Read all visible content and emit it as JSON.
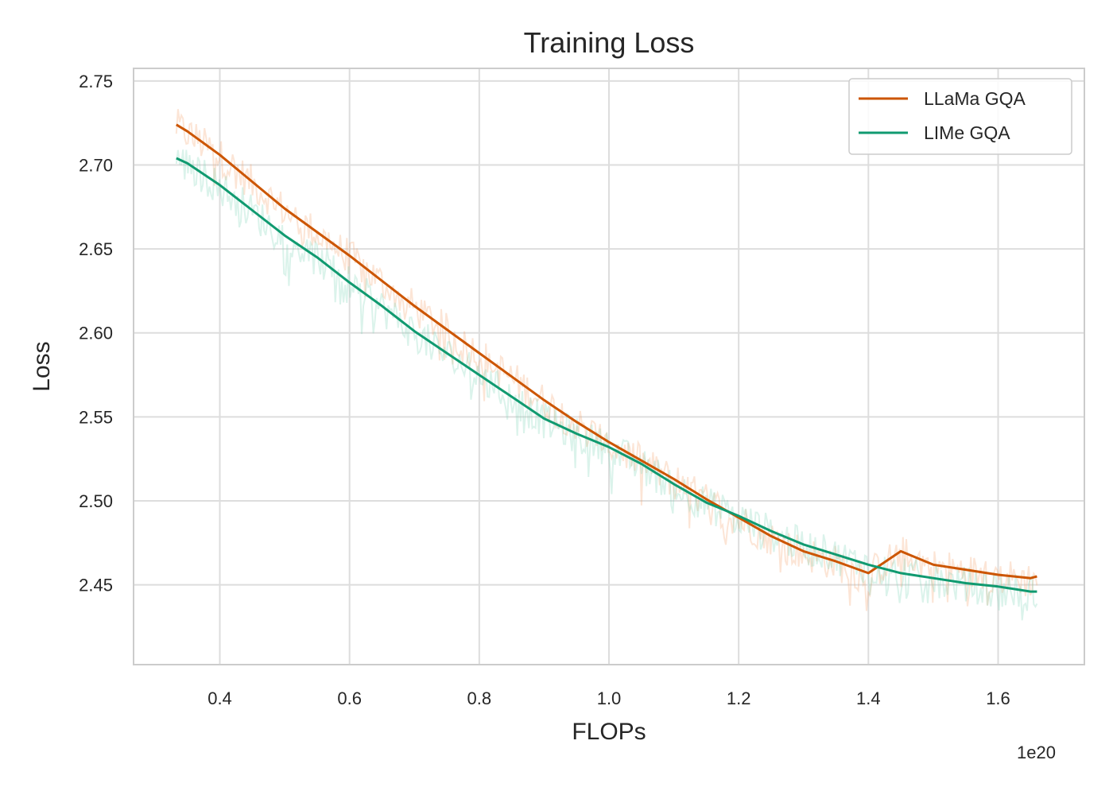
{
  "chart_data": {
    "type": "line",
    "title": "Training Loss",
    "xlabel": "FLOPs",
    "ylabel": "Loss",
    "x_offset_text": "1e20",
    "xlim": [
      0.267,
      1.733
    ],
    "ylim": [
      2.4025,
      2.7575
    ],
    "xticks": [
      {
        "v": 0.4,
        "label": "0.4"
      },
      {
        "v": 0.6,
        "label": "0.6"
      },
      {
        "v": 0.8,
        "label": "0.8"
      },
      {
        "v": 1.0,
        "label": "1.0"
      },
      {
        "v": 1.2,
        "label": "1.2"
      },
      {
        "v": 1.4,
        "label": "1.4"
      },
      {
        "v": 1.6,
        "label": "1.6"
      }
    ],
    "yticks": [
      {
        "v": 2.45,
        "label": "2.45"
      },
      {
        "v": 2.5,
        "label": "2.50"
      },
      {
        "v": 2.55,
        "label": "2.55"
      },
      {
        "v": 2.6,
        "label": "2.60"
      },
      {
        "v": 2.65,
        "label": "2.65"
      },
      {
        "v": 2.7,
        "label": "2.70"
      },
      {
        "v": 2.75,
        "label": "2.75"
      }
    ],
    "grid": true,
    "legend_position": "top-right",
    "series": [
      {
        "name": "LLaMa GQA",
        "color": "#cc5500",
        "x": [
          0.333,
          0.35,
          0.4,
          0.45,
          0.5,
          0.55,
          0.6,
          0.65,
          0.7,
          0.75,
          0.8,
          0.85,
          0.9,
          0.95,
          1.0,
          1.05,
          1.1,
          1.15,
          1.2,
          1.25,
          1.3,
          1.35,
          1.4,
          1.45,
          1.5,
          1.55,
          1.6,
          1.65,
          1.66
        ],
        "y": [
          2.724,
          2.72,
          2.706,
          2.69,
          2.674,
          2.66,
          2.646,
          2.631,
          2.616,
          2.602,
          2.588,
          2.574,
          2.56,
          2.547,
          2.535,
          2.524,
          2.513,
          2.501,
          2.49,
          2.479,
          2.47,
          2.464,
          2.457,
          2.47,
          2.462,
          2.459,
          2.456,
          2.454,
          2.455
        ]
      },
      {
        "name": "LIMe GQA",
        "color": "#109a70",
        "x": [
          0.333,
          0.35,
          0.4,
          0.45,
          0.5,
          0.55,
          0.6,
          0.65,
          0.7,
          0.75,
          0.8,
          0.85,
          0.9,
          0.95,
          1.0,
          1.05,
          1.1,
          1.15,
          1.2,
          1.25,
          1.3,
          1.35,
          1.4,
          1.45,
          1.5,
          1.55,
          1.6,
          1.65,
          1.66
        ],
        "y": [
          2.704,
          2.701,
          2.688,
          2.673,
          2.658,
          2.645,
          2.63,
          2.616,
          2.601,
          2.588,
          2.575,
          2.562,
          2.549,
          2.54,
          2.532,
          2.522,
          2.51,
          2.499,
          2.491,
          2.482,
          2.474,
          2.468,
          2.462,
          2.457,
          2.454,
          2.451,
          2.449,
          2.446,
          2.446
        ]
      }
    ]
  }
}
